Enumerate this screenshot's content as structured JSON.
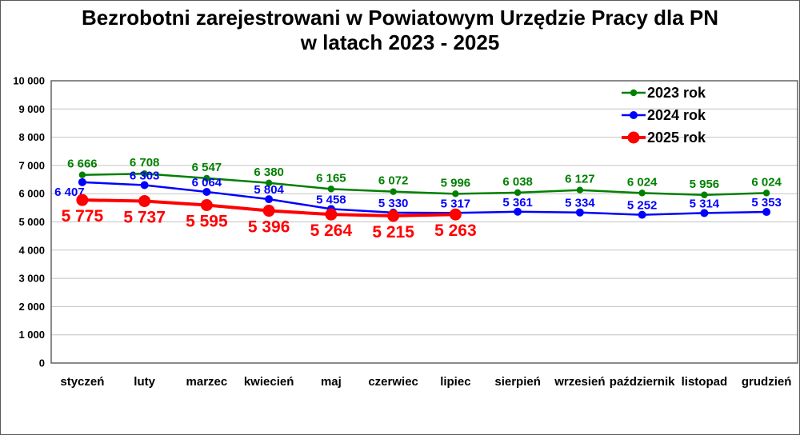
{
  "title": {
    "line1": "Bezrobotni zarejestrowani w Powiatowym Urzędzie Pracy dla PN",
    "line2": "w latach 2023 - 2025"
  },
  "chart_data": {
    "type": "line",
    "categories": [
      "styczeń",
      "luty",
      "marzec",
      "kwiecień",
      "maj",
      "czerwiec",
      "lipiec",
      "sierpień",
      "wrzesień",
      "październik",
      "listopad",
      "grudzień"
    ],
    "series": [
      {
        "name": "2023 rok",
        "color": "#008000",
        "values": [
          6666,
          6708,
          6547,
          6380,
          6165,
          6072,
          5996,
          6038,
          6127,
          6024,
          5956,
          6024
        ]
      },
      {
        "name": "2024 rok",
        "color": "#0000FF",
        "values": [
          6407,
          6303,
          6064,
          5804,
          5458,
          5330,
          5317,
          5361,
          5334,
          5252,
          5314,
          5353
        ]
      },
      {
        "name": "2025 rok",
        "color": "#FF0000",
        "values": [
          5775,
          5737,
          5595,
          5396,
          5264,
          5215,
          5263
        ]
      }
    ],
    "ylim": [
      0,
      10000
    ],
    "ytick_step": 1000,
    "ytick_labels": [
      "0",
      "1 000",
      "2 000",
      "3 000",
      "4 000",
      "5 000",
      "6 000",
      "7 000",
      "8 000",
      "9 000",
      "10 000"
    ],
    "grid": "horizontal",
    "legend_position": "top-right",
    "data_labels": true,
    "number_format": "space-thousands",
    "colors": {
      "gridline": "#c3c3c3",
      "plot_border": "#595959",
      "axis_text": "#000000",
      "background": "#ffffff"
    }
  }
}
